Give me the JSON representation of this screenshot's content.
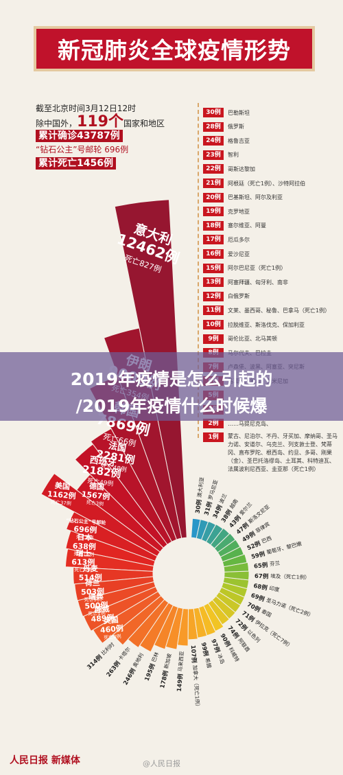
{
  "title": "新冠肺炎全球疫情形势",
  "info": {
    "line1": "截至北京时间3月12日12时",
    "line2_prefix": "除中国外，",
    "line2_num": "119个",
    "line2_suffix": "国家和地区",
    "line3": "累计确诊43787例",
    "line4_a": "“钻石公主”号邮轮",
    "line4_b": "696例",
    "line5": "累计死亡1456例"
  },
  "overlay": {
    "line1": "2019年疫情是怎么引起的",
    "line2": "/2019年疫情什么时候爆"
  },
  "footer": {
    "logo": "人民日报 新媒体",
    "watermark": "@人民日报"
  },
  "ranks": [
    {
      "badge": "30例",
      "text": "巴勒斯坦"
    },
    {
      "badge": "28例",
      "text": "俄罗斯"
    },
    {
      "badge": "24例",
      "text": "格鲁吉亚"
    },
    {
      "badge": "23例",
      "text": "智利"
    },
    {
      "badge": "22例",
      "text": "哥斯达黎加"
    },
    {
      "badge": "21例",
      "text": "阿根廷（死亡1例）、沙特阿拉伯"
    },
    {
      "badge": "20例",
      "text": "巴基斯坦、阿尔及利亚"
    },
    {
      "badge": "19例",
      "text": "克罗地亚"
    },
    {
      "badge": "18例",
      "text": "塞尔维亚、阿曼"
    },
    {
      "badge": "17例",
      "text": "厄瓜多尔"
    },
    {
      "badge": "16例",
      "text": "爱沙尼亚"
    },
    {
      "badge": "15例",
      "text": "阿尔巴尼亚（死亡1例）"
    },
    {
      "badge": "13例",
      "text": "阿塞拜疆、匈牙利、南非"
    },
    {
      "badge": "12例",
      "text": "白俄罗斯"
    },
    {
      "badge": "11例",
      "text": "文莱、墨西哥、秘鲁、巴拿马（死亡1例）"
    },
    {
      "badge": "10例",
      "text": "拉脱维亚、斯洛伐克、保加利亚"
    },
    {
      "badge": "9例",
      "text": "哥伦比亚、北马其顿"
    },
    {
      "badge": "8例",
      "text": "马尔代夫、巴拉圭"
    },
    {
      "badge": "7例",
      "text": "卢森堡、波黑、阿塞亚、突尼斯"
    },
    {
      "badge": "6例",
      "text": "马耳他、黑山、多米尼加"
    },
    {
      "badge": "5例",
      "text": ""
    },
    {
      "badge": "4例",
      "text": ""
    },
    {
      "badge": "2例",
      "text": "……马提尼克岛、"
    },
    {
      "badge": "1例",
      "text": "蒙古、尼泊尔、不丹、牙买加、摩纳哥、圣马力诺、安道尔、乌克兰、列支敦士登、梵蒂冈、直布罗陀、根西岛、约旦、多哥、刚果（金）、圣巴托洛缪岛、土耳其、科特迪瓦、法属波利尼西亚、圭亚那（死亡1例）"
    }
  ],
  "chart_data": {
    "type": "rose",
    "title": "新冠肺炎全球疫情形势",
    "series": [
      {
        "name": "意大利",
        "value": 12462,
        "deaths_label": "死亡827例",
        "label": "12462例"
      },
      {
        "name": "伊朗",
        "value": 9000,
        "deaths_label": "死亡354例",
        "label": "9000例"
      },
      {
        "name": "韩国",
        "value": 7869,
        "deaths_label": "死亡66例",
        "label": "7869例"
      },
      {
        "name": "法国",
        "value": 2281,
        "deaths_label": "死亡48例",
        "label": "2281例"
      },
      {
        "name": "西班牙",
        "value": 2182,
        "deaths_label": "死亡49例",
        "label": "2182例"
      },
      {
        "name": "德国",
        "value": 1567,
        "deaths_label": "死亡3例",
        "label": "1567例"
      },
      {
        "name": "美国",
        "value": 1162,
        "deaths_label": "死亡37例",
        "label": "1162例"
      },
      {
        "name": "“钻石公主”号邮轮",
        "value": 696,
        "deaths_label": "死亡7例",
        "label": "696例"
      },
      {
        "name": "日本",
        "value": 638,
        "deaths_label": "死亡15例",
        "label": "638例"
      },
      {
        "name": "瑞士",
        "value": 613,
        "deaths_label": "死亡4例",
        "label": "613例"
      },
      {
        "name": "丹麦",
        "value": 514,
        "deaths_label": "",
        "label": "514例"
      },
      {
        "name": "荷兰",
        "value": 503,
        "deaths_label": "死亡5例",
        "label": "503例"
      },
      {
        "name": "瑞典",
        "value": 500,
        "deaths_label": "死亡1例",
        "label": "500例"
      },
      {
        "name": "挪威",
        "value": 489,
        "deaths_label": "",
        "label": "489例"
      },
      {
        "name": "英国",
        "value": 460,
        "deaths_label": "死亡8例",
        "label": "460例"
      },
      {
        "name": "比利时",
        "value": 314,
        "deaths_label": "",
        "label": "314例"
      },
      {
        "name": "卡塔尔",
        "value": 263,
        "deaths_label": "",
        "label": "263例"
      },
      {
        "name": "奥地利",
        "value": 246,
        "deaths_label": "",
        "label": "246例"
      },
      {
        "name": "巴林",
        "value": 195,
        "deaths_label": "",
        "label": "195例"
      },
      {
        "name": "新加坡",
        "value": 178,
        "deaths_label": "",
        "label": "178例"
      },
      {
        "name": "马来西亚",
        "value": 149,
        "deaths_label": "",
        "label": "149例"
      },
      {
        "name": "加拿大",
        "value": 107,
        "deaths_label": "死亡1例",
        "label": "107例"
      },
      {
        "name": "希腊",
        "value": 99,
        "deaths_label": "",
        "label": "99例"
      },
      {
        "name": "冰岛",
        "value": 97,
        "deaths_label": "",
        "label": "97例"
      },
      {
        "name": "科威特",
        "value": 90,
        "deaths_label": "",
        "label": "90例"
      },
      {
        "name": "阿联酋",
        "value": 74,
        "deaths_label": "",
        "label": "74例"
      },
      {
        "name": "以色列",
        "value": 72,
        "deaths_label": "",
        "label": "72例"
      },
      {
        "name": "伊拉克",
        "value": 71,
        "deaths_label": "死亡7例",
        "label": "71例"
      },
      {
        "name": "泰国",
        "value": 70,
        "deaths_label": "",
        "label": "70例"
      },
      {
        "name": "圣马力诺",
        "value": 69,
        "deaths_label": "死亡2例",
        "label": "69例"
      },
      {
        "name": "印度",
        "value": 68,
        "deaths_label": "",
        "label": "68例"
      },
      {
        "name": "埃及",
        "value": 67,
        "deaths_label": "死亡1例",
        "label": "67例"
      },
      {
        "name": "芬兰",
        "value": 65,
        "deaths_label": "",
        "label": "65例"
      },
      {
        "name": "葡萄牙、黎巴嫩",
        "value": 59,
        "deaths_label": "",
        "label": "59例"
      },
      {
        "name": "巴西",
        "value": 52,
        "deaths_label": "",
        "label": "52例"
      },
      {
        "name": "菲律宾",
        "value": 49,
        "deaths_label": "",
        "label": "49例"
      },
      {
        "name": "斯洛文尼亚",
        "value": 47,
        "deaths_label": "",
        "label": "47例"
      },
      {
        "name": "爱尔兰",
        "value": 43,
        "deaths_label": "",
        "label": "43例"
      },
      {
        "name": "越南",
        "value": 38,
        "deaths_label": "",
        "label": "38例"
      },
      {
        "name": "波兰",
        "value": 34,
        "deaths_label": "",
        "label": "34例"
      },
      {
        "name": "罗马尼亚",
        "value": 31,
        "deaths_label": "",
        "label": "31例"
      },
      {
        "name": "澳大利亚",
        "value": 30,
        "deaths_label": "",
        "label": "30例"
      }
    ]
  }
}
